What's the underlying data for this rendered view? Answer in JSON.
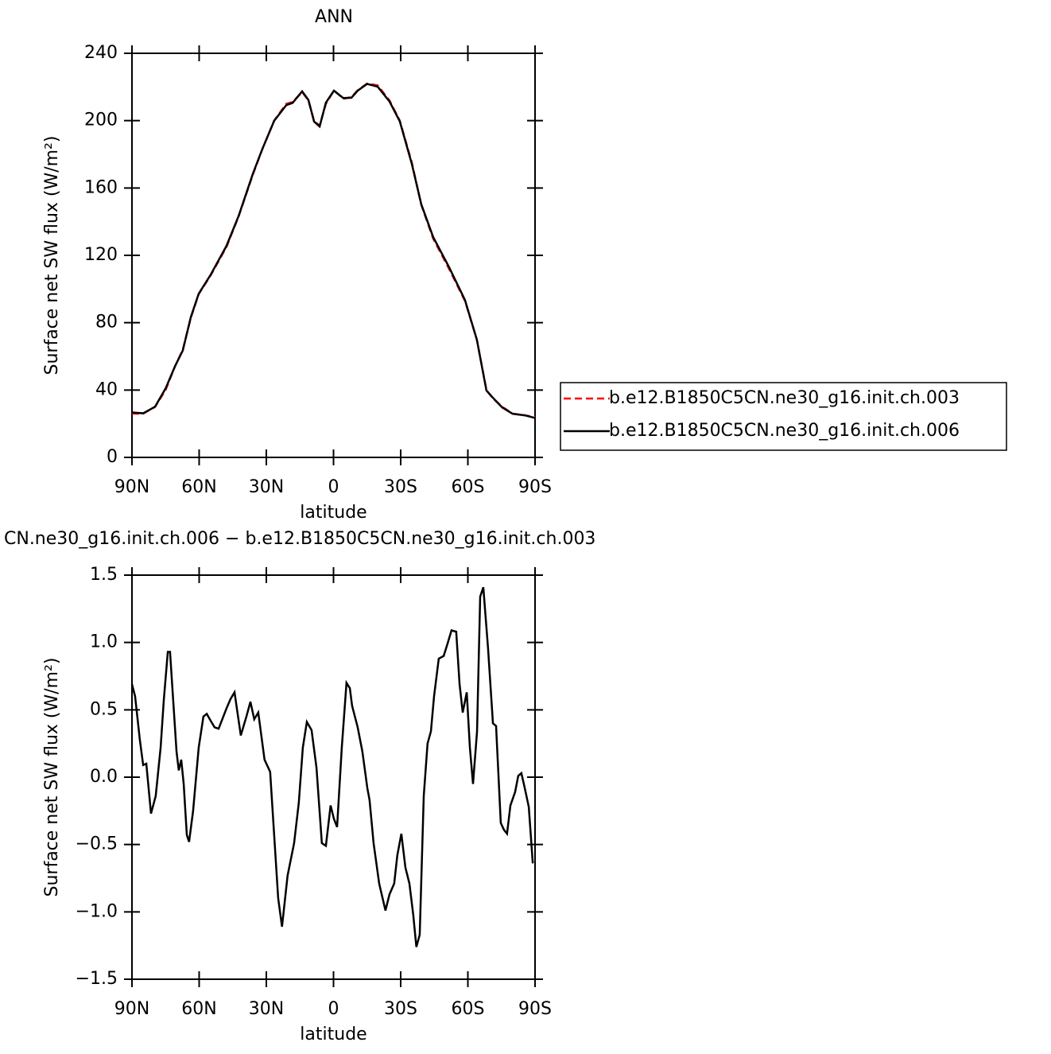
{
  "chart_data": [
    {
      "type": "line",
      "title": "ANN",
      "xlabel": "latitude",
      "ylabel": "Surface net SW flux (W/m²)",
      "xlim": [
        90,
        -90
      ],
      "ylim": [
        0,
        240
      ],
      "xticks": [
        {
          "value": 90,
          "label": "90N"
        },
        {
          "value": 60,
          "label": "60N"
        },
        {
          "value": 30,
          "label": "30N"
        },
        0,
        {
          "value": -30,
          "label": "30S"
        },
        {
          "value": -60,
          "label": "60S"
        },
        {
          "value": -90,
          "label": "90S"
        }
      ],
      "yticks": [
        0,
        40,
        80,
        120,
        160,
        200,
        240
      ],
      "legend": "right",
      "x": [
        90,
        85,
        79.7,
        75,
        70.8,
        67.3,
        63.7,
        60.2,
        54.9,
        47.8,
        42.4,
        36,
        31.8,
        26.5,
        21.1,
        18.3,
        14,
        11.2,
        8.7,
        6.2,
        3.4,
        -0.2,
        -4.4,
        -8,
        -10.8,
        -15,
        -19.7,
        -25,
        -29.6,
        -35,
        -39.2,
        -44.5,
        -51.6,
        -58.7,
        -64,
        -68.3,
        -71.2,
        -75.4,
        -80,
        -85.4,
        -90
      ],
      "series": [
        {
          "name": "b.e12.B1850C5CN.ne30_g16.init.ch.003",
          "color": "#ff0000",
          "line_style": "dashed",
          "values": [
            26,
            26,
            30,
            40,
            54,
            64,
            83,
            97,
            108,
            125,
            143,
            168,
            183,
            200,
            210,
            211,
            217,
            212,
            200,
            197,
            210,
            218,
            213,
            214,
            218,
            222,
            221,
            212,
            200,
            175,
            150,
            130,
            112,
            93,
            70,
            40,
            35,
            30,
            26,
            25,
            24
          ]
        },
        {
          "name": "b.e12.B1850C5CN.ne30_g16.init.ch.006",
          "color": "#000000",
          "line_style": "solid",
          "values": [
            26.7,
            26.2,
            30.1,
            40.9,
            54.1,
            63.5,
            83.4,
            97.2,
            108.4,
            125.6,
            143.3,
            168.5,
            183.1,
            199.9,
            209.2,
            210.5,
            217.4,
            212.3,
            199.5,
            196.5,
            210.7,
            217.8,
            213.4,
            213.6,
            217.8,
            221.8,
            220.2,
            211.4,
            199.6,
            174.2,
            150.3,
            130.9,
            113,
            93.5,
            70,
            39.7,
            35.4,
            29.6,
            25.9,
            25,
            23.4
          ]
        }
      ]
    },
    {
      "type": "line",
      "title": "CN.ne30_g16.init.ch.006 − b.e12.B1850C5CN.ne30_g16.init.ch.003",
      "xlabel": "latitude",
      "ylabel": "Surface net SW flux (W/m²)",
      "xlim": [
        90,
        -90
      ],
      "ylim": [
        -1.5,
        1.5
      ],
      "xticks": [
        {
          "value": 90,
          "label": "90N"
        },
        {
          "value": 60,
          "label": "60N"
        },
        {
          "value": 30,
          "label": "30N"
        },
        0,
        {
          "value": -30,
          "label": "30S"
        },
        {
          "value": -60,
          "label": "60S"
        },
        {
          "value": -90,
          "label": "90S"
        }
      ],
      "yticks": [
        {
          "value": -1.5,
          "label": "−1.5"
        },
        {
          "value": -1,
          "label": "−1.0"
        },
        {
          "value": -0.5,
          "label": "−0.5"
        },
        {
          "value": 0,
          "label": "0.0"
        },
        0.5,
        {
          "value": 1,
          "label": "1.0"
        },
        1.5
      ],
      "x": [
        90,
        88.6,
        86.5,
        85.0,
        83.6,
        81.5,
        79.4,
        77.2,
        75.8,
        74.0,
        73.0,
        70.1,
        69.1,
        68.0,
        66.9,
        65.5,
        64.5,
        62.7,
        60.2,
        58.1,
        56.6,
        54.9,
        53.1,
        51.3,
        47.8,
        46.0,
        44.2,
        41.4,
        38.9,
        37.1,
        35.4,
        33.6,
        30.8,
        28.3,
        26.5,
        24.7,
        23.0,
        20.5,
        17.6,
        15.5,
        13.7,
        11.9,
        9.8,
        7.6,
        5.2,
        3.4,
        1.3,
        -0.2,
        -1.6,
        -3.7,
        -5.8,
        -7.3,
        -8.3,
        -10.8,
        -12.9,
        -15.1,
        -16.1,
        -17.9,
        -20.4,
        -23.2,
        -25.0,
        -27.1,
        -28.5,
        -30.3,
        -32.1,
        -33.9,
        -35.6,
        -37.0,
        -38.5,
        -40.3,
        -42.0,
        -43.5,
        -44.9,
        -47.0,
        -49.2,
        -50.9,
        -52.7,
        -54.8,
        -56.3,
        -57.7,
        -59.5,
        -60.9,
        -62.3,
        -64.1,
        -65.5,
        -66.9,
        -69.0,
        -71.2,
        -72.6,
        -74.7,
        -76.1,
        -77.5,
        -79.0,
        -81.1,
        -82.5,
        -83.9,
        -85.4,
        -87.2,
        -89.0
      ],
      "series": [
        {
          "color": "#000000",
          "line_style": "solid",
          "values": [
            0.69,
            0.6,
            0.28,
            0.09,
            0.1,
            -0.27,
            -0.14,
            0.22,
            0.57,
            0.93,
            0.93,
            0.19,
            0.05,
            0.13,
            -0.05,
            -0.43,
            -0.48,
            -0.25,
            0.22,
            0.45,
            0.47,
            0.42,
            0.37,
            0.36,
            0.51,
            0.58,
            0.63,
            0.31,
            0.45,
            0.56,
            0.43,
            0.48,
            0.13,
            0.04,
            -0.43,
            -0.9,
            -1.11,
            -0.73,
            -0.49,
            -0.19,
            0.22,
            0.41,
            0.35,
            0.07,
            -0.49,
            -0.51,
            -0.21,
            -0.31,
            -0.37,
            0.22,
            0.7,
            0.66,
            0.53,
            0.37,
            0.19,
            -0.08,
            -0.17,
            -0.49,
            -0.79,
            -0.99,
            -0.87,
            -0.79,
            -0.58,
            -0.42,
            -0.67,
            -0.79,
            -1.02,
            -1.26,
            -1.17,
            -0.14,
            0.25,
            0.34,
            0.6,
            0.88,
            0.9,
            0.99,
            1.09,
            1.08,
            0.69,
            0.48,
            0.63,
            0.22,
            -0.05,
            0.34,
            1.34,
            1.41,
            0.96,
            0.4,
            0.38,
            -0.34,
            -0.39,
            -0.42,
            -0.21,
            -0.11,
            0.01,
            0.03,
            -0.08,
            -0.22,
            -0.64
          ]
        }
      ]
    }
  ]
}
